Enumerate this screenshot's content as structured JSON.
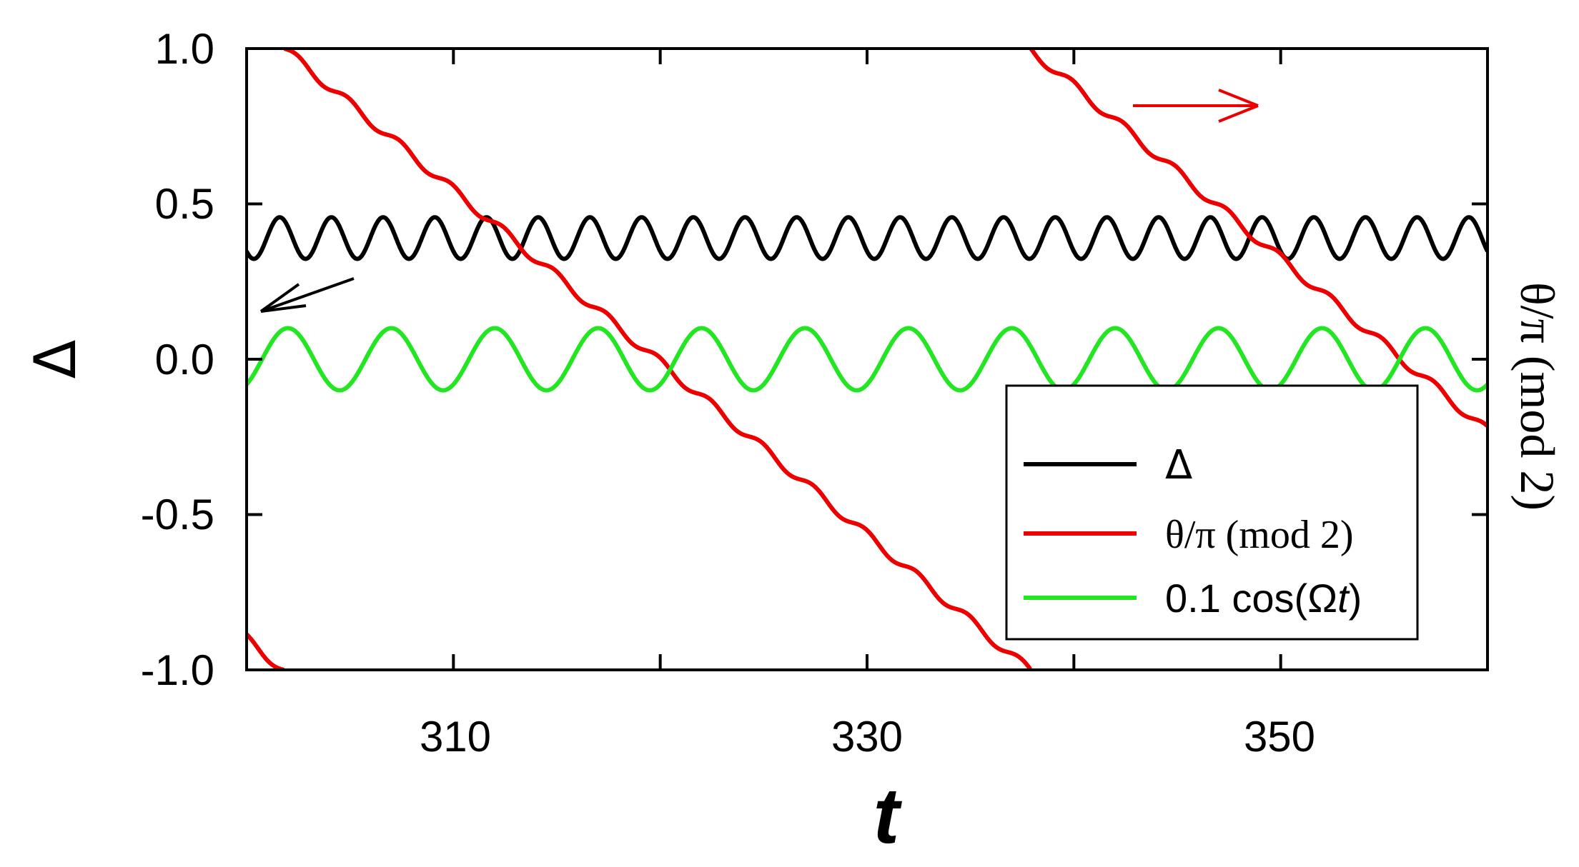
{
  "chart_data": {
    "type": "line",
    "title": "",
    "xlabel": "t",
    "ylabel": "Δ",
    "y2label": "θ/π (mod 2)",
    "xlim": [
      300,
      360
    ],
    "ylim": [
      -1.0,
      1.0
    ],
    "y2lim": [
      -1.0,
      1.0
    ],
    "x_ticks": [
      310,
      330,
      350
    ],
    "x_tick_labels": [
      "310",
      "330",
      "350"
    ],
    "y_ticks": [
      1.0,
      0.5,
      0.0,
      -0.5,
      -1.0
    ],
    "y_tick_labels": [
      "1.0",
      "0.5",
      "0.0",
      "-0.5",
      "-1.0"
    ],
    "grid": false,
    "legend_position": "bottom-right",
    "series": [
      {
        "name": "Δ",
        "legend_label": "Δ",
        "color": "#000000",
        "axis": "left",
        "model": "sinusoid",
        "mean": 0.39,
        "amplitude": 0.067,
        "period": 2.5,
        "phase_x": 301.6
      },
      {
        "name": "θ/π (mod 2)",
        "legend_label": "θ/π (mod 2)",
        "color": "#ee0000",
        "axis": "right",
        "model": "sawtooth_wrapped",
        "slope": -0.0555,
        "start_value": 1.0,
        "start_x": 301.8,
        "ripple_amplitude": 0.015,
        "ripple_period": 2.5,
        "wrap_range": [
          -1.0,
          1.0
        ]
      },
      {
        "name": "0.1 cos(Ωt)",
        "legend_label_prefix": "0.1 cos(Ω",
        "legend_label_var": "t",
        "legend_label_suffix": ")",
        "color": "#22e622",
        "axis": "left",
        "model": "sinusoid",
        "mean": 0.0,
        "amplitude": 0.1,
        "period": 5.0,
        "phase_x": 302.0
      }
    ],
    "annotations": [
      {
        "name": "arrow-left-axis",
        "color": "#000000",
        "meaning": "Δ series uses left axis",
        "direction": "left"
      },
      {
        "name": "arrow-right-axis",
        "color": "#ee0000",
        "meaning": "θ/π series uses right axis",
        "direction": "right"
      }
    ]
  }
}
